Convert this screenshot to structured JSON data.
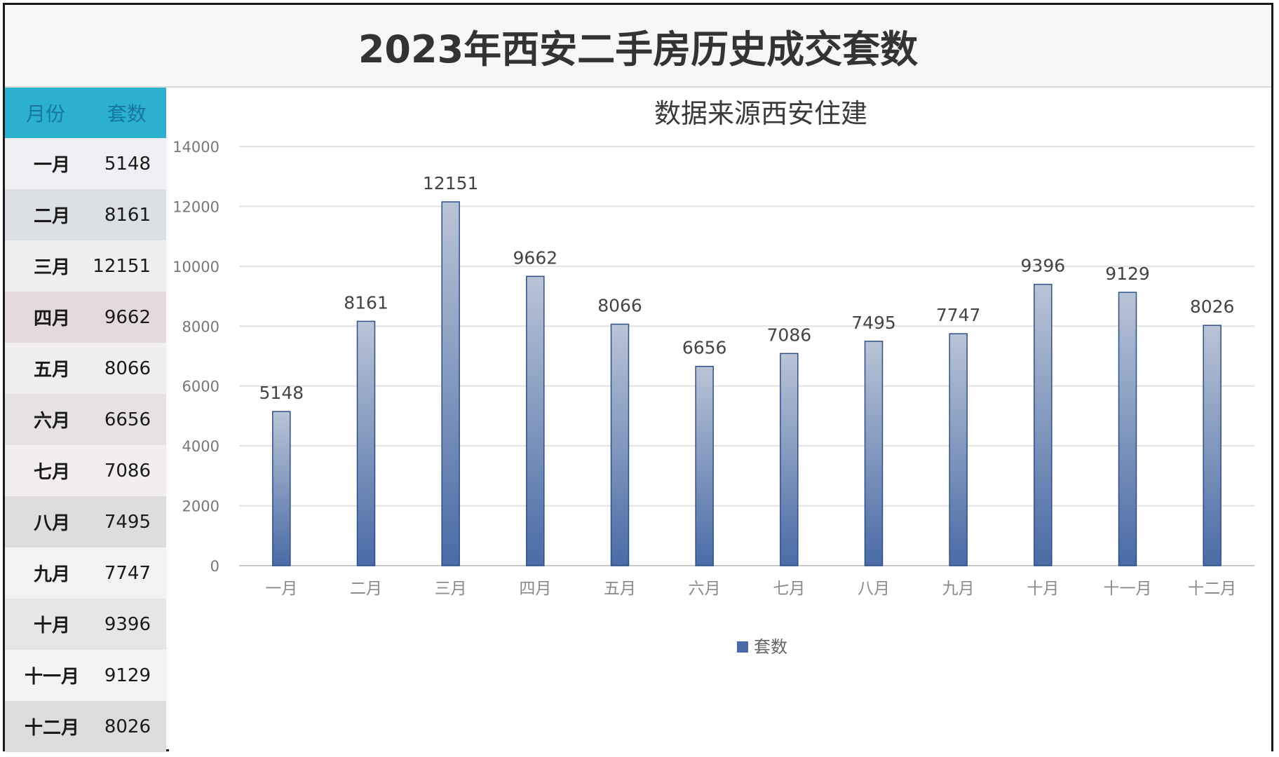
{
  "title": "2023年西安二手房历史成交套数",
  "table": {
    "header": {
      "month": "月份",
      "count": "套数"
    },
    "rows": [
      {
        "month": "一月",
        "count": "5148"
      },
      {
        "month": "二月",
        "count": "8161"
      },
      {
        "month": "三月",
        "count": "12151"
      },
      {
        "month": "四月",
        "count": "9662"
      },
      {
        "month": "五月",
        "count": "8066"
      },
      {
        "month": "六月",
        "count": "6656"
      },
      {
        "month": "七月",
        "count": "7086"
      },
      {
        "month": "八月",
        "count": "7495"
      },
      {
        "month": "九月",
        "count": "7747"
      },
      {
        "month": "十月",
        "count": "9396"
      },
      {
        "month": "十一月",
        "count": "9129"
      },
      {
        "month": "十二月",
        "count": "8026"
      }
    ],
    "colors": {
      "header_bg": "#2bb0cf",
      "header_text": "#1777a0"
    }
  },
  "chart_data": {
    "type": "bar",
    "title": "数据来源西安住建",
    "categories": [
      "一月",
      "二月",
      "三月",
      "四月",
      "五月",
      "六月",
      "七月",
      "八月",
      "九月",
      "十月",
      "十一月",
      "十二月"
    ],
    "series": [
      {
        "name": "套数",
        "values": [
          5148,
          8161,
          12151,
          9662,
          8066,
          6656,
          7086,
          7495,
          7747,
          9396,
          9129,
          8026
        ]
      }
    ],
    "ylim": [
      0,
      14000
    ],
    "yticks": [
      0,
      2000,
      4000,
      6000,
      8000,
      10000,
      12000,
      14000
    ],
    "xlabel": "",
    "ylabel": "",
    "grid": true,
    "legend_position": "bottom",
    "data_labels": true,
    "colors": {
      "bar_top": "#b9c4d6",
      "bar_bottom": "#4a6ba6",
      "bar_stroke": "#2f4f86",
      "grid": "#e3e3e3"
    }
  }
}
